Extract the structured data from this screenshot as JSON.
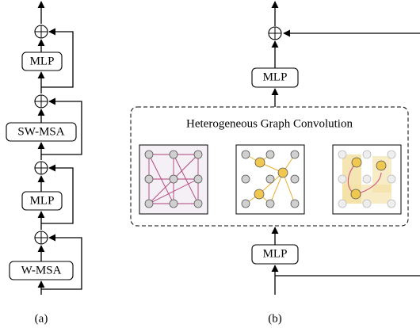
{
  "panel_a": {
    "blocks": [
      "MLP",
      "SW-MSA",
      "MLP",
      "W-MSA"
    ],
    "caption": "(a)"
  },
  "panel_b": {
    "blocks": [
      "MLP",
      "MLP"
    ],
    "module_title": "Heterogeneous Graph Convolution",
    "caption": "(b)"
  }
}
